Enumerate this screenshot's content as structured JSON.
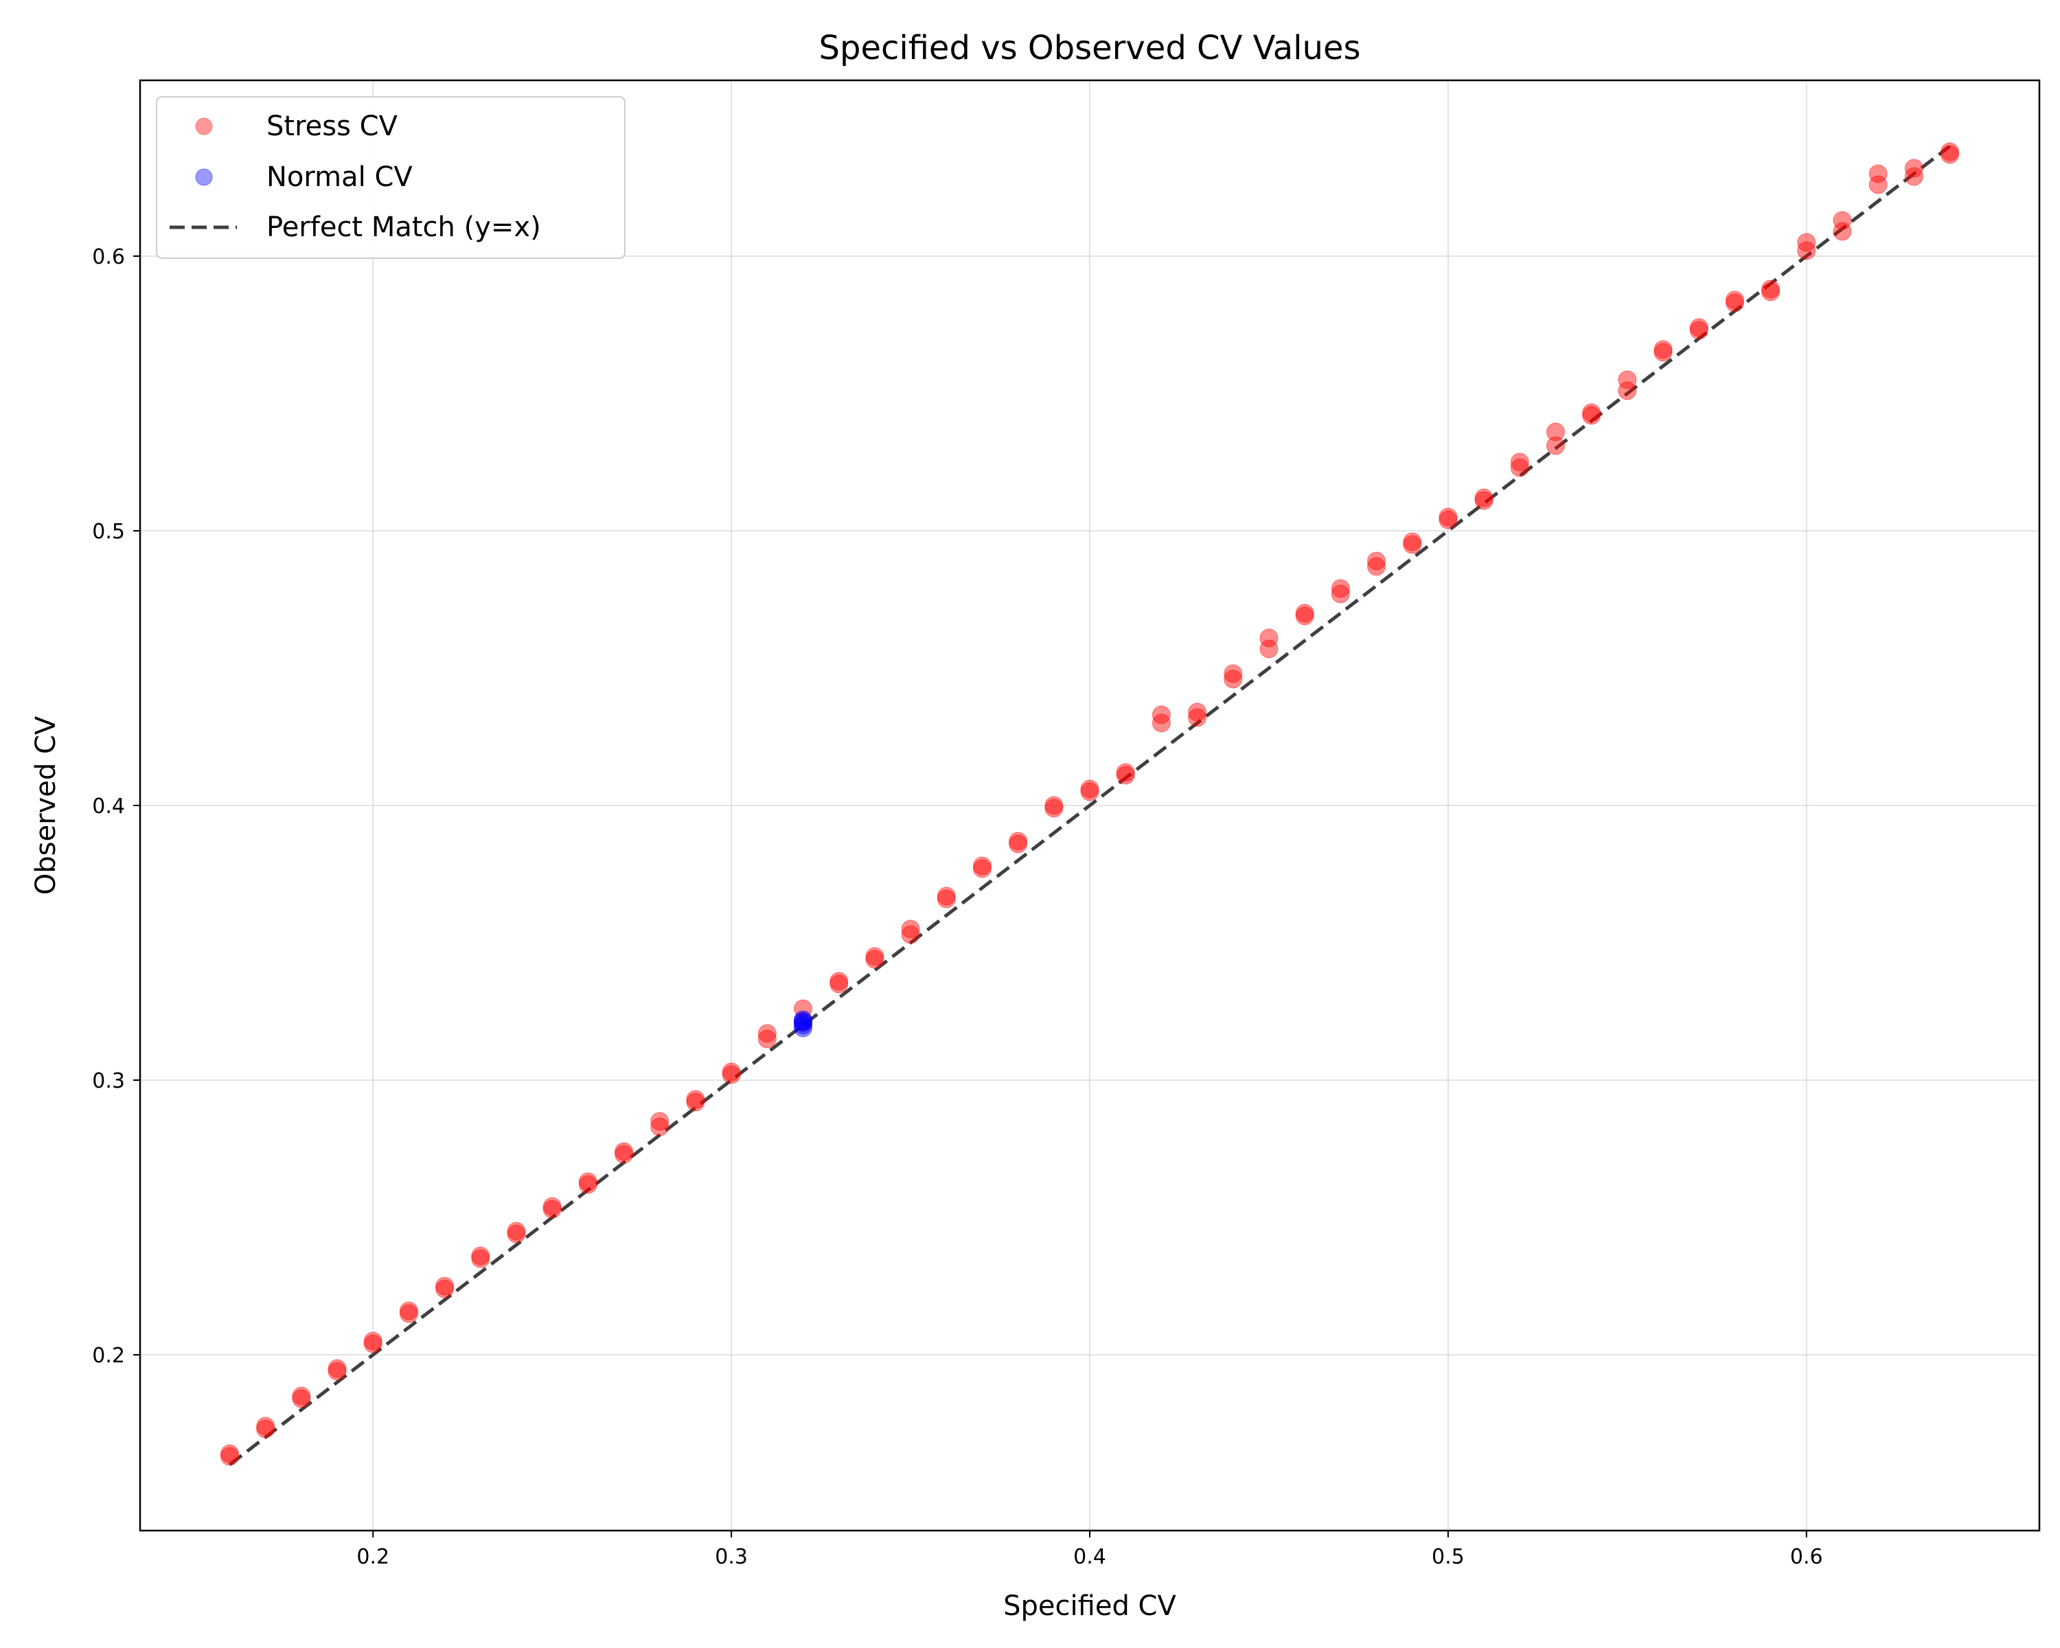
{
  "chart_data": {
    "type": "scatter",
    "title": "Specified vs Observed CV Values",
    "xlabel": "Specified CV",
    "ylabel": "Observed CV",
    "xlim": [
      0.135,
      0.665
    ],
    "ylim": [
      0.136,
      0.664
    ],
    "xticks": [
      0.2,
      0.3,
      0.4,
      0.5,
      0.6
    ],
    "yticks": [
      0.2,
      0.3,
      0.4,
      0.5,
      0.6
    ],
    "xtick_labels": [
      "0.2",
      "0.3",
      "0.4",
      "0.5",
      "0.6"
    ],
    "ytick_labels": [
      "0.2",
      "0.3",
      "0.4",
      "0.5",
      "0.6"
    ],
    "grid": true,
    "legend_position": "top-left",
    "colors": {
      "stress": "#ff0000",
      "normal": "#0000ff",
      "reference": "#404040"
    },
    "series": [
      {
        "name": "Stress CV",
        "kind": "scatter",
        "points": [
          [
            0.16,
            0.163
          ],
          [
            0.16,
            0.164
          ],
          [
            0.17,
            0.174
          ],
          [
            0.17,
            0.173
          ],
          [
            0.18,
            0.185
          ],
          [
            0.18,
            0.184
          ],
          [
            0.19,
            0.195
          ],
          [
            0.19,
            0.194
          ],
          [
            0.2,
            0.205
          ],
          [
            0.2,
            0.204
          ],
          [
            0.21,
            0.215
          ],
          [
            0.21,
            0.216
          ],
          [
            0.22,
            0.224
          ],
          [
            0.22,
            0.225
          ],
          [
            0.23,
            0.236
          ],
          [
            0.23,
            0.235
          ],
          [
            0.24,
            0.245
          ],
          [
            0.24,
            0.244
          ],
          [
            0.25,
            0.253
          ],
          [
            0.25,
            0.254
          ],
          [
            0.26,
            0.263
          ],
          [
            0.26,
            0.262
          ],
          [
            0.27,
            0.273
          ],
          [
            0.27,
            0.274
          ],
          [
            0.28,
            0.285
          ],
          [
            0.28,
            0.283
          ],
          [
            0.29,
            0.292
          ],
          [
            0.29,
            0.293
          ],
          [
            0.3,
            0.303
          ],
          [
            0.3,
            0.302
          ],
          [
            0.31,
            0.315
          ],
          [
            0.31,
            0.317
          ],
          [
            0.32,
            0.326
          ],
          [
            0.32,
            0.321
          ],
          [
            0.33,
            0.335
          ],
          [
            0.33,
            0.336
          ],
          [
            0.34,
            0.345
          ],
          [
            0.34,
            0.344
          ],
          [
            0.35,
            0.355
          ],
          [
            0.35,
            0.353
          ],
          [
            0.36,
            0.367
          ],
          [
            0.36,
            0.366
          ],
          [
            0.37,
            0.377
          ],
          [
            0.37,
            0.378
          ],
          [
            0.38,
            0.386
          ],
          [
            0.38,
            0.387
          ],
          [
            0.39,
            0.4
          ],
          [
            0.39,
            0.399
          ],
          [
            0.4,
            0.406
          ],
          [
            0.4,
            0.405
          ],
          [
            0.41,
            0.412
          ],
          [
            0.41,
            0.411
          ],
          [
            0.42,
            0.433
          ],
          [
            0.42,
            0.43
          ],
          [
            0.43,
            0.432
          ],
          [
            0.43,
            0.434
          ],
          [
            0.44,
            0.446
          ],
          [
            0.44,
            0.448
          ],
          [
            0.45,
            0.461
          ],
          [
            0.45,
            0.457
          ],
          [
            0.46,
            0.469
          ],
          [
            0.46,
            0.47
          ],
          [
            0.47,
            0.477
          ],
          [
            0.47,
            0.479
          ],
          [
            0.48,
            0.489
          ],
          [
            0.48,
            0.487
          ],
          [
            0.49,
            0.496
          ],
          [
            0.49,
            0.495
          ],
          [
            0.5,
            0.504
          ],
          [
            0.5,
            0.505
          ],
          [
            0.51,
            0.511
          ],
          [
            0.51,
            0.512
          ],
          [
            0.52,
            0.525
          ],
          [
            0.52,
            0.523
          ],
          [
            0.53,
            0.536
          ],
          [
            0.53,
            0.531
          ],
          [
            0.54,
            0.542
          ],
          [
            0.54,
            0.543
          ],
          [
            0.55,
            0.555
          ],
          [
            0.55,
            0.551
          ],
          [
            0.56,
            0.566
          ],
          [
            0.56,
            0.565
          ],
          [
            0.57,
            0.573
          ],
          [
            0.57,
            0.574
          ],
          [
            0.58,
            0.583
          ],
          [
            0.58,
            0.584
          ],
          [
            0.59,
            0.588
          ],
          [
            0.59,
            0.587
          ],
          [
            0.6,
            0.605
          ],
          [
            0.6,
            0.602
          ],
          [
            0.61,
            0.609
          ],
          [
            0.61,
            0.613
          ],
          [
            0.62,
            0.63
          ],
          [
            0.62,
            0.626
          ],
          [
            0.63,
            0.632
          ],
          [
            0.63,
            0.629
          ],
          [
            0.64,
            0.637
          ],
          [
            0.64,
            0.638
          ]
        ]
      },
      {
        "name": "Normal CV",
        "kind": "scatter",
        "points": [
          [
            0.32,
            0.32
          ],
          [
            0.32,
            0.321
          ],
          [
            0.32,
            0.322
          ],
          [
            0.32,
            0.319
          ],
          [
            0.32,
            0.3215
          ]
        ]
      },
      {
        "name": "Perfect Match (y=x)",
        "kind": "line",
        "style": "dashed",
        "points": [
          [
            0.16,
            0.16
          ],
          [
            0.64,
            0.64
          ]
        ]
      }
    ]
  }
}
